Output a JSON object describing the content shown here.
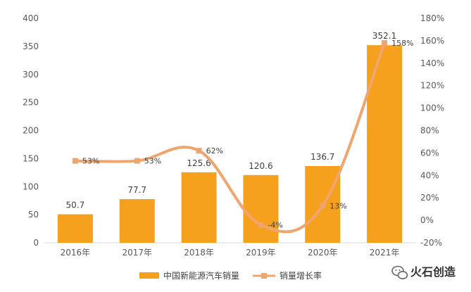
{
  "chart_data": {
    "type": "bar+line",
    "categories": [
      "2016年",
      "2017年",
      "2018年",
      "2019年",
      "2020年",
      "2021年"
    ],
    "series": [
      {
        "name": "中国新能源汽车销量",
        "type": "bar",
        "axis": "left",
        "values": [
          50.7,
          77.7,
          125.6,
          120.6,
          136.7,
          352.1
        ],
        "labels": [
          "50.7",
          "77.7",
          "125.6",
          "120.6",
          "136.7",
          "352.1"
        ],
        "color": "#F5A11D"
      },
      {
        "name": "销量增长率",
        "type": "line",
        "axis": "right",
        "smooth": true,
        "values": [
          53,
          53,
          62,
          -4,
          13,
          158
        ],
        "labels": [
          "53%",
          "53%",
          "62%",
          "-4%",
          "13%",
          "158%"
        ],
        "color": "#F0A46E"
      }
    ],
    "y_left": {
      "range": [
        0,
        400
      ],
      "ticks": [
        "0",
        "50",
        "100",
        "150",
        "200",
        "250",
        "300",
        "350",
        "400"
      ]
    },
    "y_right": {
      "range": [
        -20,
        180
      ],
      "ticks": [
        "-20%",
        "0%",
        "20%",
        "40%",
        "60%",
        "80%",
        "100%",
        "120%",
        "140%",
        "160%",
        "180%"
      ]
    },
    "grid": false,
    "legend": "bottom"
  },
  "watermark": {
    "text": "火石创造",
    "icon": "wechat-icon"
  }
}
